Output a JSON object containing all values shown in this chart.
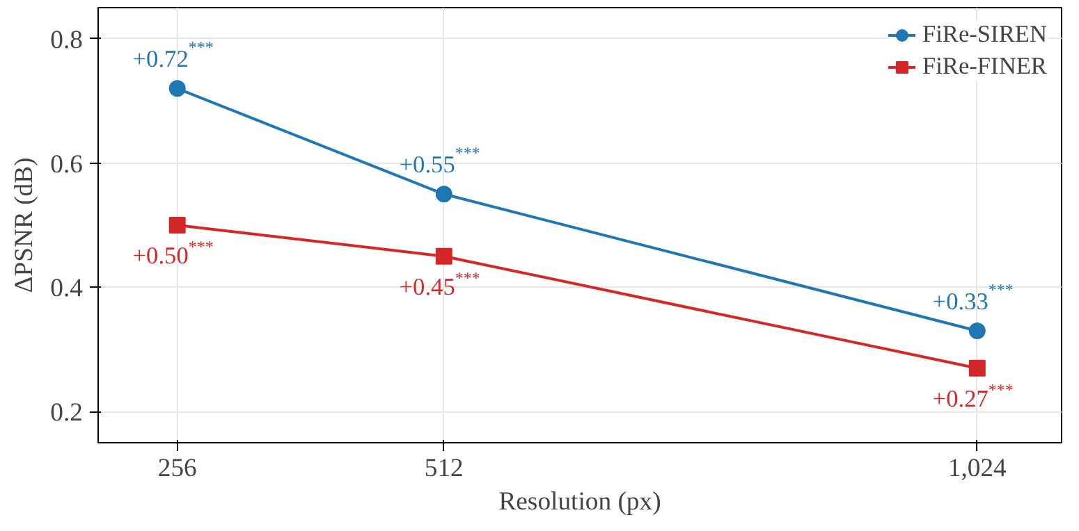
{
  "chart_data": {
    "type": "line",
    "xlabel": "Resolution (px)",
    "ylabel": "ΔPSNR (dB)",
    "x": [
      256,
      512,
      1024
    ],
    "xlim": [
      180,
      1105
    ],
    "xticks": [
      256,
      512,
      {
        "value": 1024,
        "label": "1,024"
      }
    ],
    "ylim": [
      0.15,
      0.85
    ],
    "yticks": [
      0.2,
      0.4,
      0.6,
      0.8
    ],
    "grid": true,
    "legend": "top right",
    "series": [
      {
        "name": "FiRe-SIREN",
        "color": "#1f77b4",
        "marker": "circle",
        "values": [
          0.72,
          0.55,
          0.33
        ],
        "value_labels": [
          "+0.72$^{***}$",
          "+0.55$^{***}$",
          "+0.33$^{***}$"
        ]
      },
      {
        "name": "FiRe-FINER",
        "color": "#d62728",
        "marker": "square",
        "values": [
          0.5,
          0.45,
          0.27
        ],
        "value_labels": [
          "+0.50$^{***}$",
          "+0.45$^{***}$",
          "+0.27$^{***}$"
        ]
      }
    ]
  }
}
